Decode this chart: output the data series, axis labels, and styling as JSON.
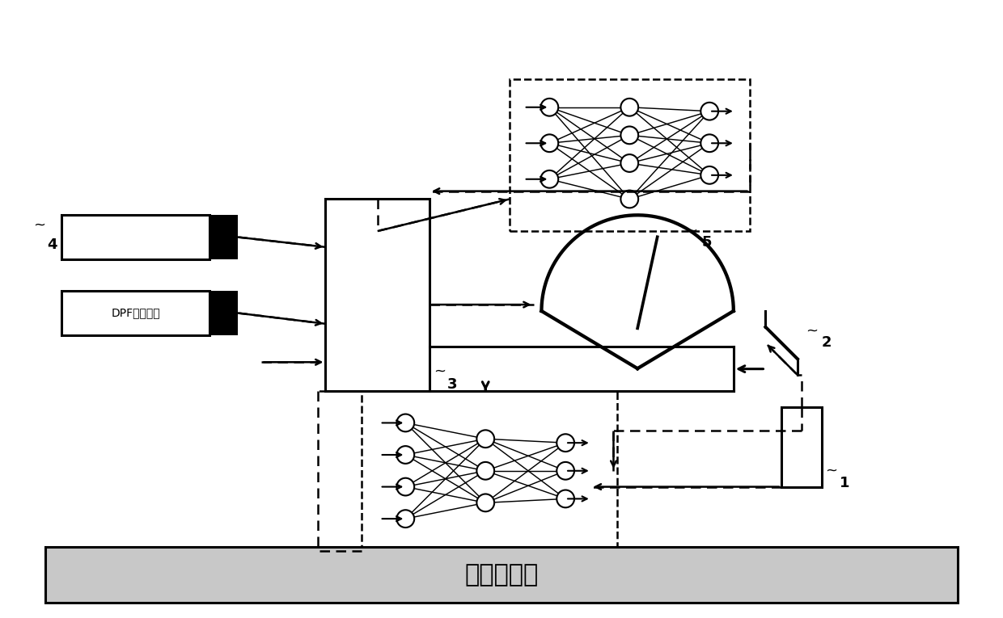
{
  "bg_color": "#ffffff",
  "bottom_bar_label": "发动机机油",
  "bottom_bar_color": "#c8c8c8",
  "labels": {
    "label1": "1",
    "label2": "2",
    "label3": "3",
    "label4": "4",
    "label5": "5",
    "dpf_label": "DPF再生次数"
  },
  "fig_width": 12.4,
  "fig_height": 7.65
}
